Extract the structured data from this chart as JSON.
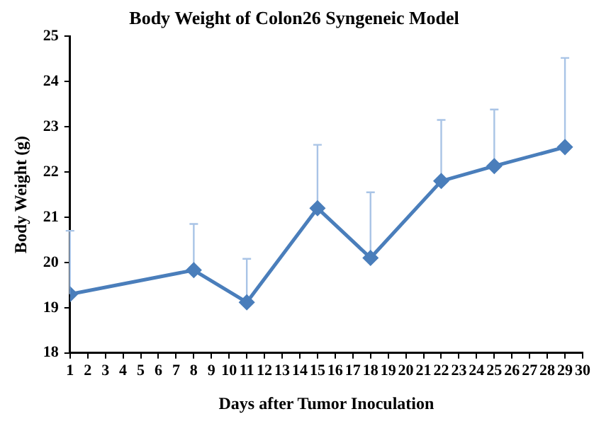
{
  "chart_data": {
    "type": "line",
    "title": "Body Weight of Colon26 Syngeneic Model",
    "xlabel": "Days after Tumor Inoculation",
    "ylabel": "Body Weight (g)",
    "x": [
      1,
      8,
      11,
      15,
      18,
      22,
      25,
      29
    ],
    "series": [
      {
        "color": "#4a7ebb",
        "values": [
          19.3,
          19.83,
          19.12,
          21.2,
          20.1,
          21.8,
          22.13,
          22.55
        ],
        "errors": [
          [
            19.3,
            20.7
          ],
          [
            19.83,
            20.85
          ],
          [
            19.12,
            20.08
          ],
          [
            21.2,
            22.6
          ],
          [
            20.1,
            21.55
          ],
          [
            21.8,
            23.15
          ],
          [
            22.13,
            23.38
          ],
          [
            22.55,
            24.52
          ]
        ]
      }
    ],
    "xlim": [
      1,
      30
    ],
    "xticks": [
      1,
      2,
      3,
      4,
      5,
      6,
      7,
      8,
      9,
      10,
      11,
      12,
      13,
      14,
      15,
      16,
      17,
      18,
      19,
      20,
      21,
      22,
      23,
      24,
      25,
      26,
      27,
      28,
      29,
      30
    ],
    "ylim": [
      18,
      25
    ],
    "yticks": [
      18,
      19,
      20,
      21,
      22,
      23,
      24,
      25
    ],
    "grid": false,
    "legend": false,
    "marker": "diamond",
    "line_style": "solid"
  }
}
